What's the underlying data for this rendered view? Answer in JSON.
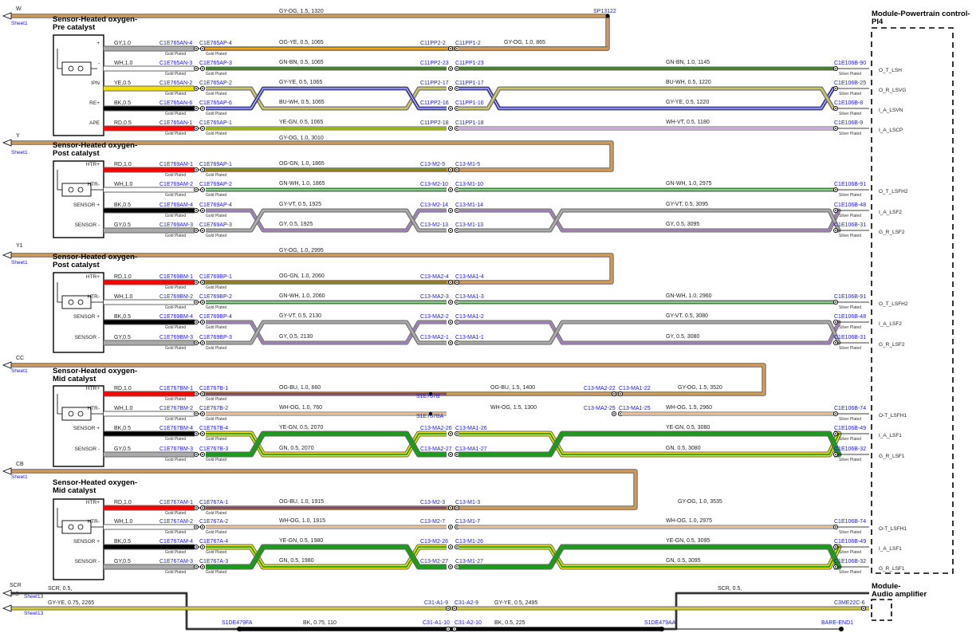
{
  "module": {
    "title_l1": "Module-Powertrain control-",
    "title_l2": "PI4"
  },
  "audio": {
    "title_l1": "Module-",
    "title_l2": "Audio amplifier"
  },
  "labels": {
    "gold": "Gold Plated",
    "silver": "Silver Plated",
    "sheet1": "Sheet1",
    "sheet13": "Sheet13"
  },
  "colors": {
    "GY": "#a9a9a9",
    "WH": "#ffffff",
    "YE": "#f0e000",
    "BK": "#000000",
    "RD": "#ff0000",
    "OG": "#e07a10",
    "GN": "#1c9a1c",
    "BU": "#1818c8",
    "VT": "#9a50d8",
    "wire_tan": "#d29a58",
    "bg": "#ffffff"
  },
  "sheets": [
    {
      "letter": "W",
      "label": "Sheet1",
      "wire": "GY-OG, 1.5, 1320",
      "splice": "SP13122"
    },
    {
      "letter": "Y",
      "label": "Sheet1",
      "wire": "GY-OG, 1.0, 3010"
    },
    {
      "letter": "Y1",
      "label": "Sheet1",
      "wire": "GY-OG, 1.0, 2995"
    },
    {
      "letter": "CC",
      "label": "Sheet1"
    },
    {
      "letter": "CB",
      "label": "Sheet1"
    }
  ],
  "sensors": [
    {
      "title_l1": "Sensor-Heated oxygen-",
      "title_l2": "Pre catalyst",
      "rows": [
        {
          "pin": "+",
          "spec": "GY,1.0",
          "c1": "C1E765AN-4",
          "c2": "C1E765AP-4",
          "w2": "OG-YE, 0.5, 1065",
          "ic1": "C11PP2-2",
          "ic2": "C11PP1-2",
          "w3": "GY-OG, 1.0, 865",
          "end": "",
          "sig": ""
        },
        {
          "pin": "-",
          "spec": "WH,1.0",
          "c1": "C1E765AN-3",
          "c2": "C1E765AP-3",
          "w2": "GN-BN, 0.5, 1065",
          "ic1": "C11PP2-23",
          "ic2": "C11PP1-23",
          "w3": "GN-BN, 1.0, 1145",
          "end": "C1E106B-90",
          "sig": "O_T_LSH"
        },
        {
          "pin": "IPN",
          "spec": "YE,0.5",
          "c1": "C1E765AN-2",
          "c2": "C1E765AP-2",
          "w2": "GY-YE, 0.5, 1065",
          "ic1": "C11PP2-17",
          "ic2": "C11PP1-17",
          "w3": "BU-WH, 0.5, 1220",
          "end": "C1E106B-25",
          "sig": "O_R_LSVG"
        },
        {
          "pin": "RE+",
          "spec": "BK,0.5",
          "c1": "C1E765AN-6",
          "c2": "C1E765AP-6",
          "w2": "BU-WH, 0.5, 1065",
          "ic1": "C11PP2-16",
          "ic2": "C11PP1-16",
          "w3": "GY-YE, 0.5, 1220",
          "end": "C1E106B-8",
          "sig": "I_A_LSVN"
        },
        {
          "pin": "APE",
          "spec": "RD,0.5",
          "c1": "C1E765AN-1",
          "c2": "C1E765AP-1",
          "w2": "YE-GN, 0.5, 1065",
          "ic1": "C11PP2-18",
          "ic2": "C11PP1-18",
          "w3": "WH-VT, 0.5, 1180",
          "end": "C1E106B-9",
          "sig": "I_A_LSCP"
        }
      ]
    },
    {
      "title_l1": "Sensor-Heated oxygen-",
      "title_l2": "Post catalyst",
      "rows": [
        {
          "pin": "HTR+",
          "spec": "RD,1.0",
          "c1": "C1E769AM-1",
          "c2": "C1E769AP-1",
          "w2": "OG-GN, 1.0, 1865",
          "ic1": "C13-M2-5",
          "ic2": "C13-M1-5",
          "w3": "",
          "end": "",
          "sig": ""
        },
        {
          "pin": "HTR-",
          "spec": "WH,1.0",
          "c1": "C1E769AM-2",
          "c2": "C1E769AP-2",
          "w2": "GN-WH, 1.0, 1865",
          "ic1": "C13-M2-10",
          "ic2": "C13-M1-10",
          "w3": "GN-WH, 1.0, 2975",
          "end": "C1E106B-91",
          "sig": "O_T_LSFH2"
        },
        {
          "pin": "SENSOR +",
          "spec": "BK,0.5",
          "c1": "C1E769AM-4",
          "c2": "C1E769AP-4",
          "w2": "GY-VT, 0.5, 1925",
          "ic1": "C13-M2-14",
          "ic2": "C13-M1-14",
          "w3": "GY-VT, 0.5, 3095",
          "end": "C1E106B-48",
          "sig": "I_A_LSF2"
        },
        {
          "pin": "SENSOR -",
          "spec": "GY,0.5",
          "c1": "C1E769AM-3",
          "c2": "C1E769AP-3",
          "w2": "GY, 0.5, 1925",
          "ic1": "C13-M2-13",
          "ic2": "C13-M1-13",
          "w3": "GY, 0.5, 3095",
          "end": "C1E106B-31",
          "sig": "G_R_LSF2"
        }
      ]
    },
    {
      "title_l1": "Sensor-Heated oxygen-",
      "title_l2": "Post catalyst",
      "rows": [
        {
          "pin": "HTR+",
          "spec": "RD,1.0",
          "c1": "C1E769BM-1",
          "c2": "C1E769BP-1",
          "w2": "OG-GN, 1.0, 2060",
          "ic1": "C13-MA2-4",
          "ic2": "C13-MA1-4",
          "w3": "",
          "end": "",
          "sig": ""
        },
        {
          "pin": "HTR-",
          "spec": "WH,1.0",
          "c1": "C1E769BM-2",
          "c2": "C1E769BP-2",
          "w2": "GN-WH, 1.0, 2060",
          "ic1": "C13-MA2-3",
          "ic2": "C13-MA1-3",
          "w3": "GN-WH, 1.0, 2960",
          "end": "C1E106B-91",
          "sig": "O_T_LSFH2"
        },
        {
          "pin": "SENSOR +",
          "spec": "BK,0.5",
          "c1": "C1E769BM-4",
          "c2": "C1E769BP-4",
          "w2": "GY-VT, 0.5, 2130",
          "ic1": "C13-MA2-2",
          "ic2": "C13-MA1-2",
          "w3": "GY-VT, 0.5, 3080",
          "end": "C1E106B-48",
          "sig": "I_A_LSF2"
        },
        {
          "pin": "SENSOR -",
          "spec": "GY,0.5",
          "c1": "C1E769BM-3",
          "c2": "C1E769BP-3",
          "w2": "GY, 0.5, 2130",
          "ic1": "C13-MA2-1",
          "ic2": "C13-MA1-1",
          "w3": "GY, 0.5, 3080",
          "end": "C1E106B-31",
          "sig": "G_R_LSF2"
        }
      ]
    },
    {
      "title_l1": "Sensor-Heated oxygen-",
      "title_l2": "Mid catalyst",
      "rows": [
        {
          "pin": "HTR+",
          "spec": "RD,1.0",
          "c1": "C1E767BM-1",
          "c2": "C1E767B-1",
          "w2": "OG-BU, 1.0, 660",
          "splice": "S1E767B",
          "w2b": "OG-BU, 1.5, 1400",
          "ic1": "C13-MA2-22",
          "ic2": "C13-MA1-22",
          "w3": "GY-OG, 1.5, 3520",
          "end": "",
          "sig": ""
        },
        {
          "pin": "HTR-",
          "spec": "WH,1.0",
          "c1": "C1E767BM-2",
          "c2": "C1E767B-2",
          "w2": "WH-OG, 1.0, 760",
          "splice": "S1E767BA",
          "w2b": "WH-OG, 1.5, 1300",
          "ic1": "C13-MA2-25",
          "ic2": "C13-MA1-25",
          "w3": "WH-OG, 1.5, 2960",
          "end": "C1E106B-74",
          "sig": "O-T_LSFH1"
        },
        {
          "pin": "SENSOR +",
          "spec": "BK,0.5",
          "c1": "C1E767BM-4",
          "c2": "C1E767B-4",
          "w2": "YE-GN, 0.5, 2070",
          "ic1": "C13-MA2-26",
          "ic2": "C13-MA1-26",
          "w3": "YE-GN, 0.5, 3080",
          "end": "C1E106B-49",
          "sig": "I_A_LSF1"
        },
        {
          "pin": "SENSOR -",
          "spec": "GY,0.5",
          "c1": "C1E767BM-3",
          "c2": "C1E767B-3",
          "w2": "GN, 0.5, 2070",
          "ic1": "C13-MA2-27",
          "ic2": "C13-MA1-27",
          "w3": "GN, 0.5, 3080",
          "end": "C1E106B-32",
          "sig": "G_R_LSF1"
        }
      ]
    },
    {
      "title_l1": "Sensor-Heated oxygen-",
      "title_l2": "Mid catalyst",
      "rows": [
        {
          "pin": "HTR+",
          "spec": "RD,1.0",
          "c1": "C1E767AM-1",
          "c2": "C1E767A-1",
          "w2": "OG-BU, 1.0, 1915",
          "ic1": "C13-M2-3",
          "ic2": "C13-M1-3",
          "w3": "GY-OG, 1.0, 3535",
          "end": "",
          "sig": ""
        },
        {
          "pin": "HTR-",
          "spec": "WH,1.0",
          "c1": "C1E767AM-2",
          "c2": "C1E767A-2",
          "w2": "WH-OG, 1.0, 1915",
          "ic1": "C13-M2-7",
          "ic2": "C13-M1-7",
          "w3": "WH-OG, 1.0, 2975",
          "end": "C1E106B-74",
          "sig": "O-T_LSFH1"
        },
        {
          "pin": "SENSOR +",
          "spec": "BK,0.5",
          "c1": "C1E767AM-4",
          "c2": "C1E767A-4",
          "w2": "YE-GN, 0.5, 1980",
          "ic1": "C13-M2-26",
          "ic2": "C13-M1-26",
          "w3": "YE-GN, 0.5, 3095",
          "end": "C1E106B-49",
          "sig": "I_A_LSF1"
        },
        {
          "pin": "SENSOR -",
          "spec": "GY,0.5",
          "c1": "C1E767AM-3",
          "c2": "C1E767A-3",
          "w2": "GN, 0.5, 1980",
          "ic1": "C13-M2-27",
          "ic2": "C13-M1-27",
          "w3": "GN, 0.5, 3095",
          "end": "C1E106B-32",
          "sig": "G_R_LSF1"
        }
      ]
    }
  ],
  "bottom": {
    "scr_letter": "SCR",
    "sig_letter": "SIG",
    "scr_label": "SCR,  0.5,",
    "scr_label2": "SCR,  0.5,",
    "sig_wire": "GY-YE,  0.75,  2265",
    "sig_wire2": "GY-YE,  0.5,  2495",
    "c_a": "C31-A1-9",
    "c_b": "C31-A2-9",
    "c_c": "C31-A1-10",
    "c_d": "C31-A2-10",
    "bk1": "BK,  0.75,  110",
    "bk2": "BK,  0.5,  225",
    "s_left": "S1DE479FA",
    "s_right": "S1DE479AA",
    "bare": "BARE-END1",
    "amp_end": "C3ME22C-6"
  }
}
